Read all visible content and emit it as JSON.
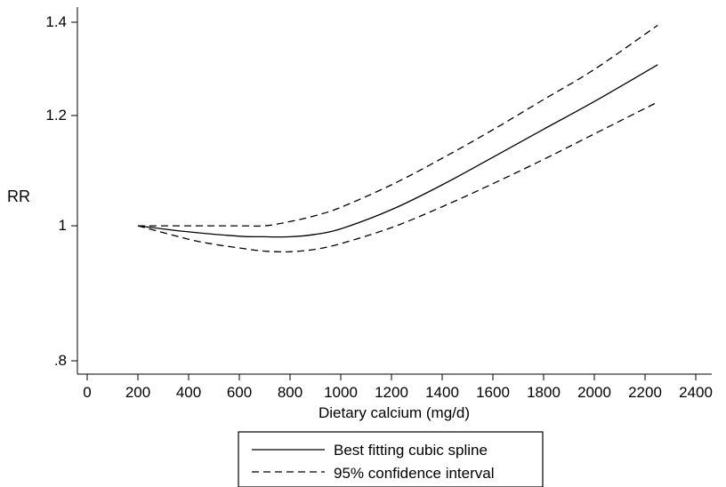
{
  "chart_data": {
    "type": "line",
    "xlabel": "Dietary calcium (mg/d)",
    "ylabel": "RR",
    "xlim": [
      0,
      2400
    ],
    "ylim": [
      0.8,
      1.4
    ],
    "y_scale": "log",
    "x_ticks": [
      0,
      200,
      400,
      600,
      800,
      1000,
      1200,
      1400,
      1600,
      1800,
      2000,
      2200,
      2400
    ],
    "x_tick_labels": [
      "0",
      "200",
      "400",
      "600",
      "800",
      "1000",
      "1200",
      "1400",
      "1600",
      "1800",
      "2000",
      "2200",
      "2400"
    ],
    "y_ticks": [
      0.8,
      1.0,
      1.2,
      1.4
    ],
    "y_tick_labels": [
      ".8",
      "1",
      "1.2",
      "1.4"
    ],
    "grid": false,
    "legend_position": "bottom-center",
    "series": [
      {
        "name": "Best fitting cubic spline",
        "style": "solid",
        "x": [
          200,
          400,
          600,
          700,
          800,
          900,
          1000,
          1200,
          1400,
          1600,
          1800,
          2000,
          2250
        ],
        "y": [
          1.0,
          0.99,
          0.983,
          0.982,
          0.982,
          0.986,
          0.995,
          1.027,
          1.07,
          1.12,
          1.173,
          1.228,
          1.305
        ]
      },
      {
        "name": "95% confidence interval",
        "style": "dashed",
        "x": [
          200,
          400,
          600,
          700,
          800,
          900,
          1000,
          1200,
          1400,
          1600,
          1800,
          2000,
          2250
        ],
        "y": [
          1.0,
          1.0,
          1.0,
          1.0,
          1.007,
          1.017,
          1.031,
          1.07,
          1.118,
          1.172,
          1.232,
          1.295,
          1.393
        ]
      },
      {
        "name": "",
        "style": "dashed",
        "x": [
          200,
          400,
          500,
          600,
          700,
          800,
          900,
          1000,
          1200,
          1400,
          1600,
          1800,
          2000,
          2250
        ],
        "y": [
          1.0,
          0.978,
          0.97,
          0.964,
          0.959,
          0.958,
          0.962,
          0.971,
          0.997,
          1.032,
          1.072,
          1.116,
          1.164,
          1.227
        ]
      }
    ]
  }
}
